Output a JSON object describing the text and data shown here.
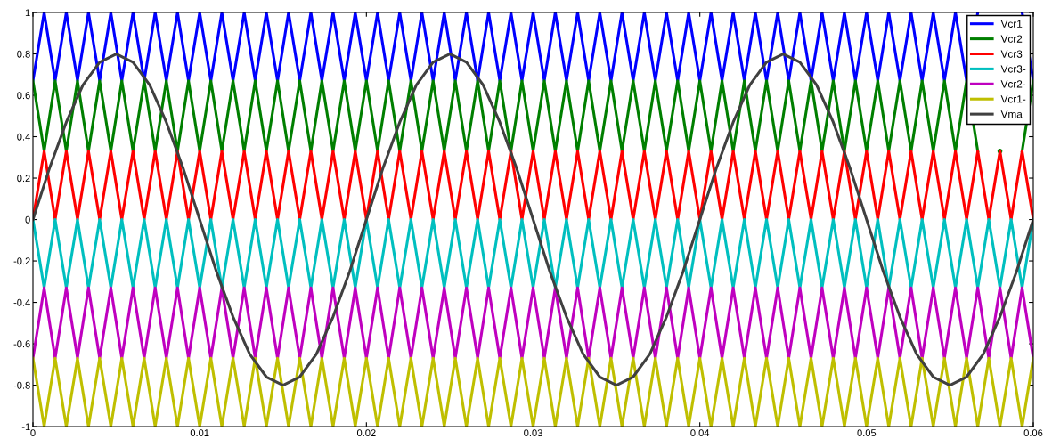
{
  "chart_data": {
    "type": "line",
    "x": [
      0,
      0.00067,
      0.00133,
      0.002,
      0.00267,
      0.00333,
      0.004,
      0.00467,
      0.00533,
      0.006,
      0.00667,
      0.00733,
      0.008,
      0.00867,
      0.00933,
      0.01,
      0.01067,
      0.01133,
      0.012,
      0.01267,
      0.01333,
      0.014,
      0.01467,
      0.01533,
      0.016,
      0.01667,
      0.01733,
      0.018,
      0.01867,
      0.01933,
      0.02,
      0.02067,
      0.02133,
      0.022,
      0.02267,
      0.02333,
      0.024,
      0.02467,
      0.02533,
      0.026,
      0.02667,
      0.02733,
      0.028,
      0.02867,
      0.02933,
      0.03,
      0.03067,
      0.03133,
      0.032,
      0.03267,
      0.03333,
      0.034,
      0.03467,
      0.03533,
      0.036,
      0.03667,
      0.03733,
      0.038,
      0.03867,
      0.03933,
      0.04,
      0.04067,
      0.04133,
      0.042,
      0.04267,
      0.04333,
      0.044,
      0.04467,
      0.04533,
      0.046,
      0.04667,
      0.04733,
      0.048,
      0.04867,
      0.04933,
      0.05,
      0.05067,
      0.05133,
      0.052,
      0.05267,
      0.05333,
      0.054,
      0.05467,
      0.05533,
      0.056,
      0.05667,
      0.05733,
      0.058,
      0.05867,
      0.05933,
      0.06
    ],
    "series": [
      {
        "name": "Vcr1",
        "color": "#0000ff",
        "values": [
          0.67,
          1,
          0.67,
          1,
          0.67,
          1,
          0.67,
          1,
          0.67,
          1,
          0.67,
          1,
          0.67,
          1,
          0.67,
          1,
          0.67,
          1,
          0.67,
          1,
          0.67,
          1,
          0.67,
          1,
          0.67,
          1,
          0.67,
          1,
          0.67,
          1,
          0.67,
          1,
          0.67,
          1,
          0.67,
          1,
          0.67,
          1,
          0.67,
          1,
          0.67,
          1,
          0.67,
          1,
          0.67,
          1,
          0.67,
          1,
          0.67,
          1,
          0.67,
          1,
          0.67,
          1,
          0.67,
          1,
          0.67,
          1,
          0.67,
          1,
          0.67,
          1,
          0.67,
          1,
          0.67,
          1,
          0.67,
          1,
          0.67,
          1,
          0.67,
          1,
          0.67,
          1,
          0.67,
          1,
          0.67,
          1,
          0.67,
          1,
          0.67,
          1,
          0.67,
          1,
          0.67,
          1,
          null,
          null,
          null,
          1,
          0.67
        ]
      },
      {
        "name": "Vcr2",
        "color": "#007f00",
        "values": [
          0.67,
          0.33,
          0.67,
          0.33,
          0.67,
          0.33,
          0.67,
          0.33,
          0.67,
          0.33,
          0.67,
          0.33,
          0.67,
          0.33,
          0.67,
          0.33,
          0.67,
          0.33,
          0.67,
          0.33,
          0.67,
          0.33,
          0.67,
          0.33,
          0.67,
          0.33,
          0.67,
          0.33,
          0.67,
          0.33,
          0.67,
          0.33,
          0.67,
          0.33,
          0.67,
          0.33,
          0.67,
          0.33,
          0.67,
          0.33,
          0.67,
          0.33,
          0.67,
          0.33,
          0.67,
          0.33,
          0.67,
          0.33,
          0.67,
          0.33,
          0.67,
          0.33,
          0.67,
          0.33,
          0.67,
          0.33,
          0.67,
          0.33,
          0.67,
          0.33,
          0.67,
          0.33,
          0.67,
          0.33,
          0.67,
          0.33,
          0.67,
          0.33,
          0.67,
          0.33,
          0.67,
          0.33,
          0.67,
          0.33,
          0.67,
          0.33,
          0.67,
          0.33,
          0.67,
          0.33,
          0.67,
          0.33,
          0.67,
          0.33,
          0.67,
          0.33,
          null,
          0.33,
          null,
          0.33,
          0.67
        ]
      },
      {
        "name": "Vcr3",
        "color": "#ff0000",
        "values": [
          0,
          0.33,
          0,
          0.33,
          0,
          0.33,
          0,
          0.33,
          0,
          0.33,
          0,
          0.33,
          0,
          0.33,
          0,
          0.33,
          0,
          0.33,
          0,
          0.33,
          0,
          0.33,
          0,
          0.33,
          0,
          0.33,
          0,
          0.33,
          0,
          0.33,
          0,
          0.33,
          0,
          0.33,
          0,
          0.33,
          0,
          0.33,
          0,
          0.33,
          0,
          0.33,
          0,
          0.33,
          0,
          0.33,
          0,
          0.33,
          0,
          0.33,
          0,
          0.33,
          0,
          0.33,
          0,
          0.33,
          0,
          0.33,
          0,
          0.33,
          0,
          0.33,
          0,
          0.33,
          0,
          0.33,
          0,
          0.33,
          0,
          0.33,
          0,
          0.33,
          0,
          0.33,
          0,
          0.33,
          0,
          0.33,
          0,
          0.33,
          0,
          0.33,
          0,
          0.33,
          0,
          0.33,
          0,
          0.33,
          0,
          0.33,
          0
        ]
      },
      {
        "name": "Vcr3-",
        "color": "#00bfbf",
        "values": [
          0,
          -0.33,
          0,
          -0.33,
          0,
          -0.33,
          0,
          -0.33,
          0,
          -0.33,
          0,
          -0.33,
          0,
          -0.33,
          0,
          -0.33,
          0,
          -0.33,
          0,
          -0.33,
          0,
          -0.33,
          0,
          -0.33,
          0,
          -0.33,
          0,
          -0.33,
          0,
          -0.33,
          0,
          -0.33,
          0,
          -0.33,
          0,
          -0.33,
          0,
          -0.33,
          0,
          -0.33,
          0,
          -0.33,
          0,
          -0.33,
          0,
          -0.33,
          0,
          -0.33,
          0,
          -0.33,
          0,
          -0.33,
          0,
          -0.33,
          0,
          -0.33,
          0,
          -0.33,
          0,
          -0.33,
          0,
          -0.33,
          0,
          -0.33,
          0,
          -0.33,
          0,
          -0.33,
          0,
          -0.33,
          0,
          -0.33,
          0,
          -0.33,
          0,
          -0.33,
          0,
          -0.33,
          0,
          -0.33,
          0,
          -0.33,
          0,
          -0.33,
          0,
          -0.33,
          0,
          -0.33,
          0,
          -0.33,
          0
        ]
      },
      {
        "name": "Vcr2-",
        "color": "#bf00bf",
        "values": [
          -0.67,
          -0.33,
          -0.67,
          -0.33,
          -0.67,
          -0.33,
          -0.67,
          -0.33,
          -0.67,
          -0.33,
          -0.67,
          -0.33,
          -0.67,
          -0.33,
          -0.67,
          -0.33,
          -0.67,
          -0.33,
          -0.67,
          -0.33,
          -0.67,
          -0.33,
          -0.67,
          -0.33,
          -0.67,
          -0.33,
          -0.67,
          -0.33,
          -0.67,
          -0.33,
          -0.67,
          -0.33,
          -0.67,
          -0.33,
          -0.67,
          -0.33,
          -0.67,
          -0.33,
          -0.67,
          -0.33,
          -0.67,
          -0.33,
          -0.67,
          -0.33,
          -0.67,
          -0.33,
          -0.67,
          -0.33,
          -0.67,
          -0.33,
          -0.67,
          -0.33,
          -0.67,
          -0.33,
          -0.67,
          -0.33,
          -0.67,
          -0.33,
          -0.67,
          -0.33,
          -0.67,
          -0.33,
          -0.67,
          -0.33,
          -0.67,
          -0.33,
          -0.67,
          -0.33,
          -0.67,
          -0.33,
          -0.67,
          -0.33,
          -0.67,
          -0.33,
          -0.67,
          -0.33,
          -0.67,
          -0.33,
          -0.67,
          -0.33,
          -0.67,
          -0.33,
          -0.67,
          -0.33,
          -0.67,
          -0.33,
          -0.67,
          -0.33,
          -0.67,
          -0.33,
          -0.67
        ]
      },
      {
        "name": "Vcr1-",
        "color": "#bfbf00",
        "values": [
          -0.67,
          -1,
          -0.67,
          -1,
          -0.67,
          -1,
          -0.67,
          -1,
          -0.67,
          -1,
          -0.67,
          -1,
          -0.67,
          -1,
          -0.67,
          -1,
          -0.67,
          -1,
          -0.67,
          -1,
          -0.67,
          -1,
          -0.67,
          -1,
          -0.67,
          -1,
          -0.67,
          -1,
          -0.67,
          -1,
          -0.67,
          -1,
          -0.67,
          -1,
          -0.67,
          -1,
          -0.67,
          -1,
          -0.67,
          -1,
          -0.67,
          -1,
          -0.67,
          -1,
          -0.67,
          -1,
          -0.67,
          -1,
          -0.67,
          -1,
          -0.67,
          -1,
          -0.67,
          -1,
          -0.67,
          -1,
          -0.67,
          -1,
          -0.67,
          -1,
          -0.67,
          -1,
          -0.67,
          -1,
          -0.67,
          -1,
          -0.67,
          -1,
          -0.67,
          -1,
          -0.67,
          -1,
          -0.67,
          -1,
          -0.67,
          -1,
          -0.67,
          -1,
          -0.67,
          -1,
          -0.67,
          -1,
          -0.67,
          -1,
          -0.67,
          -1,
          -0.67,
          -1,
          -0.67,
          -1,
          -0.67
        ]
      },
      {
        "name": "Vma",
        "color": "#404040",
        "x": [
          0,
          0.001,
          0.002,
          0.003,
          0.004,
          0.005,
          0.006,
          0.007,
          0.008,
          0.009,
          0.01,
          0.011,
          0.012,
          0.013,
          0.014,
          0.015,
          0.016,
          0.017,
          0.018,
          0.019,
          0.02,
          0.021,
          0.022,
          0.023,
          0.024,
          0.025,
          0.026,
          0.027,
          0.028,
          0.029,
          0.03,
          0.031,
          0.032,
          0.033,
          0.034,
          0.035,
          0.036,
          0.037,
          0.038,
          0.039,
          0.04,
          0.041,
          0.042,
          0.043,
          0.044,
          0.045,
          0.046,
          0.047,
          0.048,
          0.049,
          0.05,
          0.051,
          0.052,
          0.053,
          0.054,
          0.055,
          0.056,
          0.057,
          0.058,
          0.059,
          0.06
        ],
        "values": [
          0,
          0.25,
          0.47,
          0.65,
          0.76,
          0.8,
          0.76,
          0.65,
          0.47,
          0.25,
          0,
          -0.25,
          -0.47,
          -0.65,
          -0.76,
          -0.8,
          -0.76,
          -0.65,
          -0.47,
          -0.25,
          0,
          0.25,
          0.47,
          0.65,
          0.76,
          0.8,
          0.76,
          0.65,
          0.47,
          0.25,
          0,
          -0.25,
          -0.47,
          -0.65,
          -0.76,
          -0.8,
          -0.76,
          -0.65,
          -0.47,
          -0.25,
          0,
          0.25,
          0.47,
          0.65,
          0.76,
          0.8,
          0.76,
          0.65,
          0.47,
          0.25,
          0,
          -0.25,
          -0.47,
          -0.65,
          -0.76,
          -0.8,
          -0.76,
          -0.65,
          -0.47,
          -0.25,
          0
        ]
      }
    ],
    "xlim": [
      0,
      0.06
    ],
    "xticks": [
      0,
      0.01,
      0.02,
      0.03,
      0.04,
      0.05,
      0.06
    ],
    "ylim": [
      -1,
      1
    ],
    "yticks": [
      -1,
      -0.8,
      -0.6,
      -0.4,
      -0.2,
      0,
      0.2,
      0.4,
      0.6,
      0.8,
      1
    ],
    "legend": "top right",
    "grid": false,
    "marker": "none",
    "line_style": "solid"
  }
}
